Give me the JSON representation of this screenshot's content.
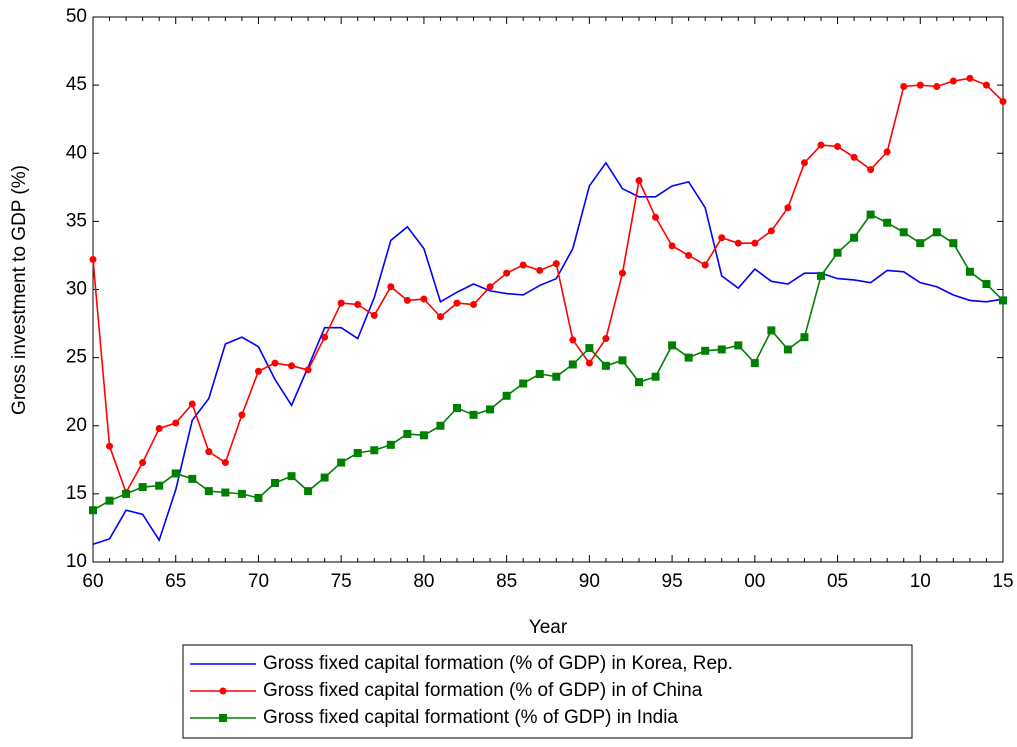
{
  "chart_data": {
    "type": "line",
    "y_label": "Gross investment to GDP (%)",
    "x_label": "Year",
    "categories": [
      "60",
      null,
      null,
      null,
      null,
      "65",
      null,
      null,
      null,
      null,
      "70",
      null,
      null,
      null,
      null,
      "75",
      null,
      null,
      null,
      null,
      "80",
      null,
      null,
      null,
      null,
      "85",
      null,
      null,
      null,
      null,
      "90",
      null,
      null,
      null,
      null,
      "95",
      null,
      null,
      null,
      null,
      "00",
      null,
      null,
      null,
      null,
      "05",
      null,
      null,
      null,
      null,
      "10",
      null,
      null,
      null,
      null,
      "15"
    ],
    "ylim": [
      10,
      50
    ],
    "yticks": [
      10,
      15,
      20,
      25,
      30,
      35,
      40,
      45,
      50
    ],
    "legend": "bottom",
    "series": [
      {
        "name": "Gross fixed capital formation (% of GDP) in  Korea, Rep.",
        "color": "#0000ff",
        "marker": "none",
        "values": [
          11.3,
          11.7,
          13.8,
          13.5,
          11.6,
          15.3,
          20.4,
          22.0,
          26.0,
          26.5,
          25.8,
          23.4,
          21.5,
          24.3,
          27.2,
          27.2,
          26.4,
          29.4,
          33.6,
          34.6,
          33.0,
          29.1,
          29.8,
          30.4,
          29.9,
          29.7,
          29.6,
          30.3,
          30.8,
          33.0,
          37.6,
          39.3,
          37.4,
          36.8,
          36.8,
          37.6,
          37.9,
          36.0,
          31.0,
          30.1,
          31.5,
          30.6,
          30.4,
          31.2,
          31.2,
          30.8,
          30.7,
          30.5,
          31.4,
          31.3,
          30.5,
          30.2,
          29.6,
          29.2,
          29.1,
          29.3
        ]
      },
      {
        "name": "Gross fixed capital formation (% of GDP) in of China",
        "color": "#ff0000",
        "marker": "circle",
        "values": [
          32.2,
          18.5,
          15.1,
          17.3,
          19.8,
          20.2,
          21.6,
          18.1,
          17.3,
          20.8,
          24.0,
          24.6,
          24.4,
          24.1,
          26.5,
          29.0,
          28.9,
          28.1,
          30.2,
          29.2,
          29.3,
          28.0,
          29.0,
          28.9,
          30.2,
          31.2,
          31.8,
          31.4,
          31.9,
          26.3,
          24.6,
          26.4,
          31.2,
          38.0,
          35.3,
          33.2,
          32.5,
          31.8,
          33.8,
          33.4,
          33.4,
          34.3,
          36.0,
          39.3,
          40.6,
          40.5,
          39.7,
          38.8,
          40.1,
          44.9,
          45.0,
          44.9,
          45.3,
          45.5,
          45.0,
          43.8
        ]
      },
      {
        "name": "Gross fixed capital formationt (% of GDP) in India",
        "color": "#008000",
        "marker": "square",
        "values": [
          13.8,
          14.5,
          15.0,
          15.5,
          15.6,
          16.5,
          16.1,
          15.2,
          15.1,
          15.0,
          14.7,
          15.8,
          16.3,
          15.2,
          16.2,
          17.3,
          18.0,
          18.2,
          18.6,
          19.4,
          19.3,
          20.0,
          21.3,
          20.8,
          21.2,
          22.2,
          23.1,
          23.8,
          23.6,
          24.5,
          25.7,
          24.4,
          24.8,
          23.2,
          23.6,
          25.9,
          25.0,
          25.5,
          25.6,
          25.9,
          24.6,
          27.0,
          25.6,
          26.5,
          31.0,
          32.7,
          33.8,
          35.5,
          34.9,
          34.2,
          33.4,
          34.2,
          33.4,
          31.3,
          30.4,
          29.2
        ]
      }
    ]
  }
}
